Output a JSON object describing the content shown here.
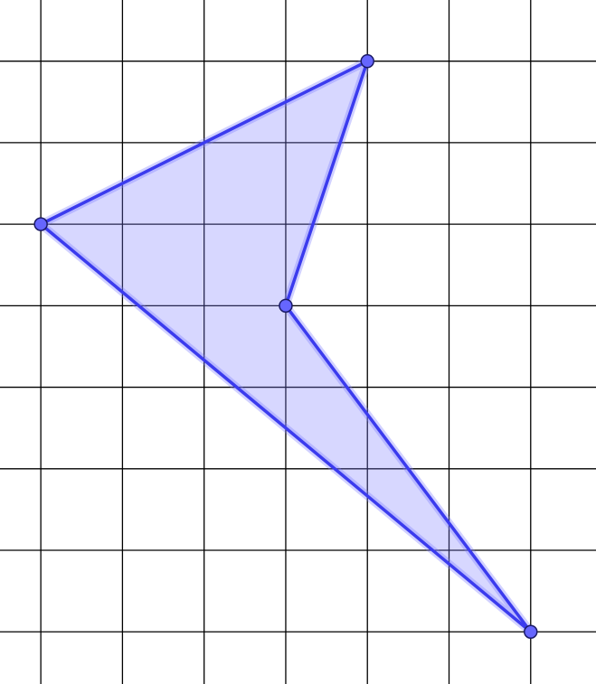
{
  "grid": {
    "x_min": -0.5,
    "x_max": 6.8,
    "y_min": -0.64,
    "y_max": 7.75,
    "step": 1,
    "line_color": "#000000"
  },
  "polygon": {
    "fill_color": "#7b7bff",
    "fill_opacity": 0.3,
    "stroke_color": "#3b3bee",
    "vertices": [
      {
        "x": 4,
        "y": 7
      },
      {
        "x": 0,
        "y": 5
      },
      {
        "x": 6,
        "y": 0
      },
      {
        "x": 3,
        "y": 4
      }
    ]
  },
  "point_style": {
    "fill_color": "#6666ff",
    "stroke_color": "#1a1a66"
  }
}
